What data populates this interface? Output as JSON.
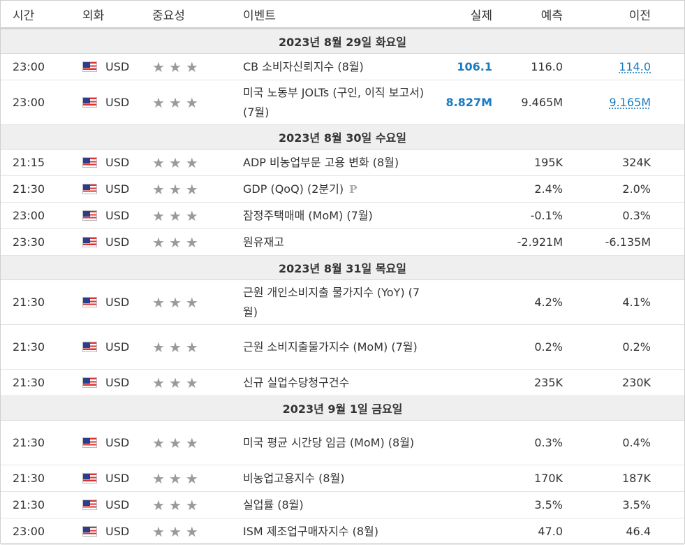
{
  "header": {
    "time": "시간",
    "currency": "외화",
    "importance": "중요성",
    "event": "이벤트",
    "actual": "실제",
    "forecast": "예측",
    "previous": "이전"
  },
  "groups": [
    {
      "date": "2023년 8월 29일 화요일",
      "rows": [
        {
          "time": "23:00",
          "cur": "USD",
          "event": "CB 소비자신뢰지수 (8월)",
          "actual": "106.1",
          "forecast": "116.0",
          "previous": "114.0",
          "prev_link": true
        },
        {
          "time": "23:00",
          "cur": "USD",
          "event": "미국 노동부 JOLTs (구인, 이직 보고서) (7월)",
          "actual": "8.827M",
          "forecast": "9.465M",
          "previous": "9.165M",
          "prev_link": true
        }
      ]
    },
    {
      "date": "2023년 8월 30일 수요일",
      "rows": [
        {
          "time": "21:15",
          "cur": "USD",
          "event": "ADP 비농업부문 고용 변화 (8월)",
          "actual": "",
          "forecast": "195K",
          "previous": "324K"
        },
        {
          "time": "21:30",
          "cur": "USD",
          "event": "GDP (QoQ) (2분기)",
          "p_badge": "P",
          "actual": "",
          "forecast": "2.4%",
          "previous": "2.0%"
        },
        {
          "time": "23:00",
          "cur": "USD",
          "event": "잠정주택매매 (MoM) (7월)",
          "actual": "",
          "forecast": "-0.1%",
          "previous": "0.3%"
        },
        {
          "time": "23:30",
          "cur": "USD",
          "event": "원유재고",
          "actual": "",
          "forecast": "-2.921M",
          "previous": "-6.135M"
        }
      ]
    },
    {
      "date": "2023년 8월 31일 목요일",
      "rows": [
        {
          "time": "21:30",
          "cur": "USD",
          "event": "근원 개인소비지출 물가지수 (YoY) (7월)",
          "actual": "",
          "forecast": "4.2%",
          "previous": "4.1%"
        },
        {
          "time": "21:30",
          "cur": "USD",
          "event": "근원 소비지출물가지수 (MoM) (7월)",
          "actual": "",
          "forecast": "0.2%",
          "previous": "0.2%"
        },
        {
          "time": "21:30",
          "cur": "USD",
          "event": "신규 실업수당청구건수",
          "actual": "",
          "forecast": "235K",
          "previous": "230K"
        }
      ]
    },
    {
      "date": "2023년 9월 1일 금요일",
      "rows": [
        {
          "time": "21:30",
          "cur": "USD",
          "event": "미국 평균 시간당 임금 (MoM) (8월)",
          "actual": "",
          "forecast": "0.3%",
          "previous": "0.4%"
        },
        {
          "time": "21:30",
          "cur": "USD",
          "event": "비농업고용지수 (8월)",
          "actual": "",
          "forecast": "170K",
          "previous": "187K"
        },
        {
          "time": "21:30",
          "cur": "USD",
          "event": "실업률 (8월)",
          "actual": "",
          "forecast": "3.5%",
          "previous": "3.5%"
        },
        {
          "time": "23:00",
          "cur": "USD",
          "event": "ISM 제조업구매자지수 (8월)",
          "actual": "",
          "forecast": "47.0",
          "previous": "46.4"
        }
      ]
    }
  ],
  "stars_count": 3,
  "colors": {
    "accent": "#1a7bc1",
    "star": "#9a9a9a",
    "date_bg": "#efefef"
  }
}
